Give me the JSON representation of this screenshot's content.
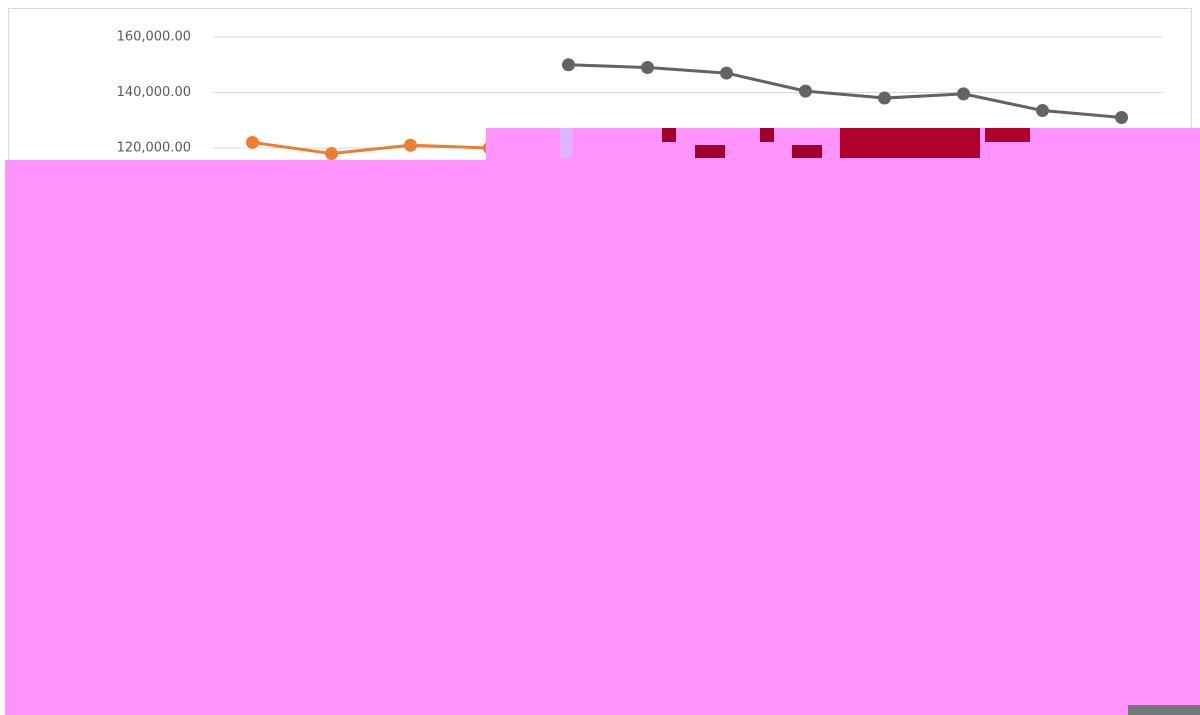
{
  "chart_data": {
    "type": "line",
    "categories": [
      null,
      null,
      null,
      null,
      null,
      null,
      null,
      null,
      null,
      null,
      null,
      null
    ],
    "series": [
      {
        "color": "#ed7d31",
        "values": [
          122000,
          118000,
          121000,
          120000,
          null,
          null,
          null,
          null,
          null,
          null,
          null,
          null
        ]
      },
      {
        "color": "#636363",
        "values": [
          null,
          null,
          null,
          null,
          150000,
          149000,
          147000,
          140500,
          138000,
          139500,
          133500,
          131000
        ]
      }
    ],
    "ylim": [
      0,
      160000
    ],
    "yticks": [
      {
        "value": 120000,
        "label": "120,000.00"
      },
      {
        "value": 140000,
        "label": "140,000.00"
      },
      {
        "value": 160000,
        "label": "160,000.00"
      }
    ],
    "grid": true
  }
}
